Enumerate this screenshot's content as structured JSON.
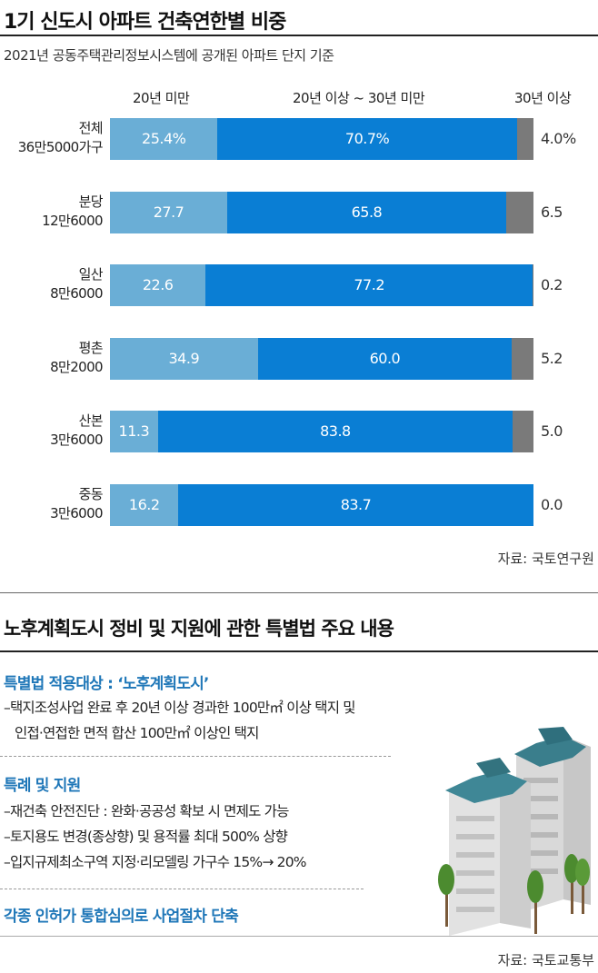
{
  "title": "1기 신도시 아파트 건축연한별 비중",
  "subtitle": "2021년 공동주택관리정보시스템에 공개된 아파트 단지 기준",
  "legend": {
    "under20": "20년 미만",
    "between": "20년 이상 ~ 30년 미만",
    "over30": "30년 이상"
  },
  "colors": {
    "under20": "#6aaed6",
    "between": "#0a7ed4",
    "over30": "#7a7a7a"
  },
  "chart_data": {
    "type": "bar",
    "orientation": "horizontal",
    "stacked": true,
    "title": "1기 신도시 아파트 건축연한별 비중",
    "subtitle": "2021년 공동주택관리정보시스템에 공개된 아파트 단지 기준",
    "unit": "%",
    "xlim": [
      0,
      100
    ],
    "categories": [
      "전체",
      "분당",
      "일산",
      "평촌",
      "산본",
      "중동"
    ],
    "sublabels": [
      "36만5000가구",
      "12만6000",
      "8만6000",
      "8만2000",
      "3만6000",
      "3만6000"
    ],
    "series": [
      {
        "name": "20년 미만",
        "values": [
          25.4,
          27.7,
          22.6,
          34.9,
          11.3,
          16.2
        ],
        "labels": [
          "25.4%",
          "27.7",
          "22.6",
          "34.9",
          "11.3",
          "16.2"
        ]
      },
      {
        "name": "20년 이상 ~ 30년 미만",
        "values": [
          70.7,
          65.8,
          77.2,
          60.0,
          83.8,
          83.7
        ],
        "labels": [
          "70.7%",
          "65.8",
          "77.2",
          "60.0",
          "83.8",
          "83.7"
        ]
      },
      {
        "name": "30년 이상",
        "values": [
          4.0,
          6.5,
          0.2,
          5.2,
          5.0,
          0.0
        ],
        "labels": [
          "4.0%",
          "6.5",
          "0.2",
          "5.2",
          "5.0",
          "0.0"
        ]
      }
    ]
  },
  "chart_source": "자료: 국토연구원",
  "law": {
    "title": "노후계획도시 정비 및 지원에 관한 특별법 주요 내용",
    "target_heading": "특별법 적용대상 : ‘노후계획도시’",
    "target_lines": [
      "–택지조성사업 완료 후 20년 이상 경과한 100만㎡ 이상 택지 및",
      "인접·연접한 면적 합산 100만㎡ 이상인 택지"
    ],
    "support_heading": "특례 및 지원",
    "support_lines": [
      "–재건축 안전진단 : 완화·공공성 확보 시 면제도 가능",
      "–토지용도 변경(종상향) 및 용적률 최대 500% 상향",
      "–입지규제최소구역 지정·리모델링 가구수 15%→ 20%"
    ],
    "closing": "각종 인허가 통합심의로 사업절차 단축",
    "source": "자료: 국토교통부"
  }
}
